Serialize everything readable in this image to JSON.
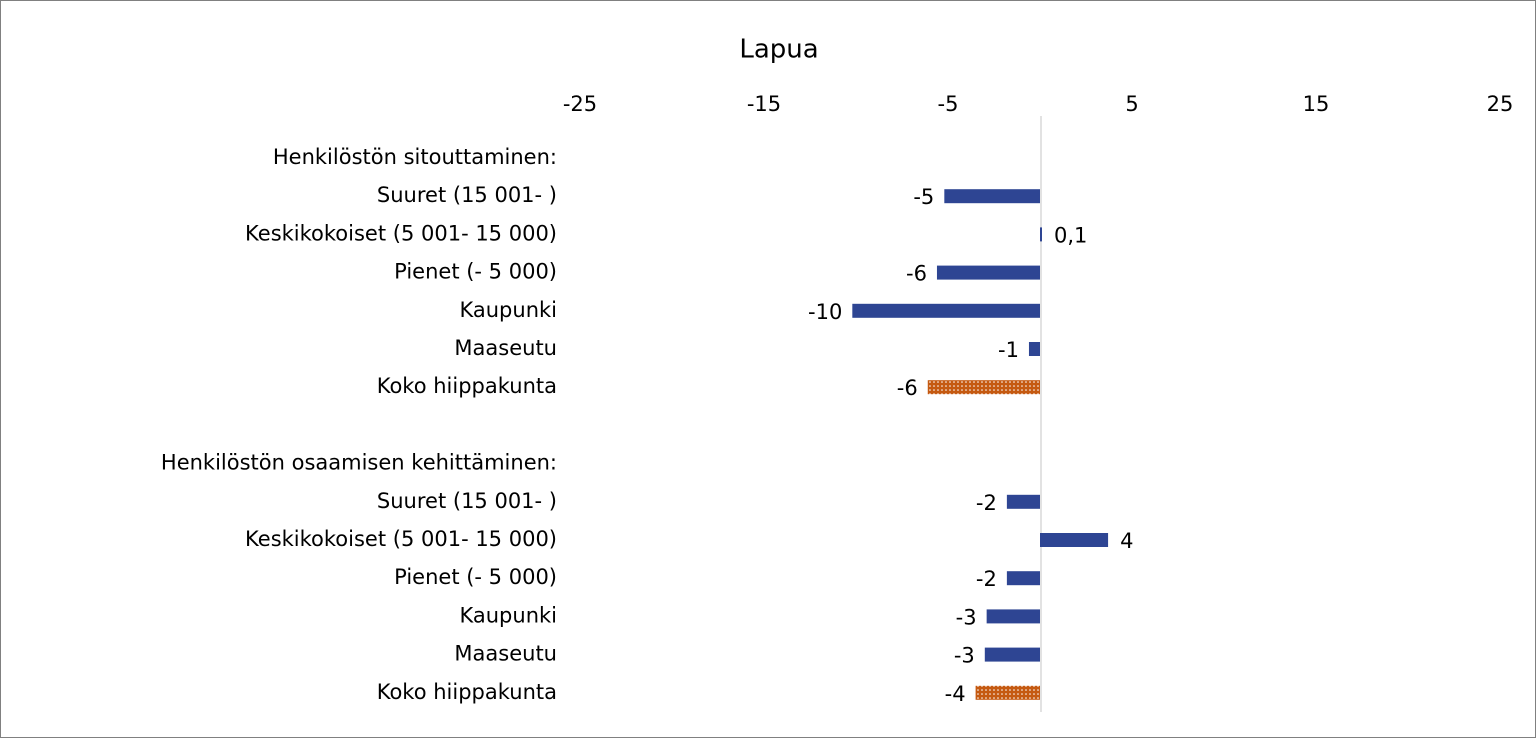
{
  "chart_data": {
    "type": "hbar",
    "title": "Lapua",
    "categories": [
      "Henkilöstön sitouttaminen:",
      "Suuret (15 001- )",
      "Keskikokoiset (5 001- 15 000)",
      "Pienet (- 5 000)",
      "Kaupunki",
      "Maaseutu",
      "Koko hiippakunta",
      null,
      "Henkilöstön osaamisen kehittäminen:",
      "Suuret (15 001- )",
      "Keskikokoiset (5 001- 15 000)",
      "Pienet (- 5 000)",
      "Kaupunki",
      "Maaseutu",
      "Koko hiippakunta"
    ],
    "values": [
      null,
      -5.2,
      0.1,
      -5.6,
      -10.2,
      -0.6,
      -6.1,
      null,
      null,
      -1.8,
      3.7,
      -1.8,
      -2.9,
      -3.0,
      -3.5
    ],
    "value_labels": [
      null,
      "-5",
      "0,1",
      "-6",
      "-10",
      "-1",
      "-6",
      null,
      null,
      "-2",
      "4",
      "-2",
      "-3",
      "-3",
      "-4"
    ],
    "colors": [
      null,
      "#2e4593",
      "#2e4593",
      "#2e4593",
      "#2e4593",
      "#2e4593",
      "#c55a11",
      null,
      null,
      "#2e4593",
      "#2e4593",
      "#2e4593",
      "#2e4593",
      "#2e4593",
      "#c55a11"
    ],
    "xlim": [
      -25,
      25
    ],
    "xticks": [
      -25,
      -15,
      -5,
      5,
      15,
      25
    ]
  }
}
